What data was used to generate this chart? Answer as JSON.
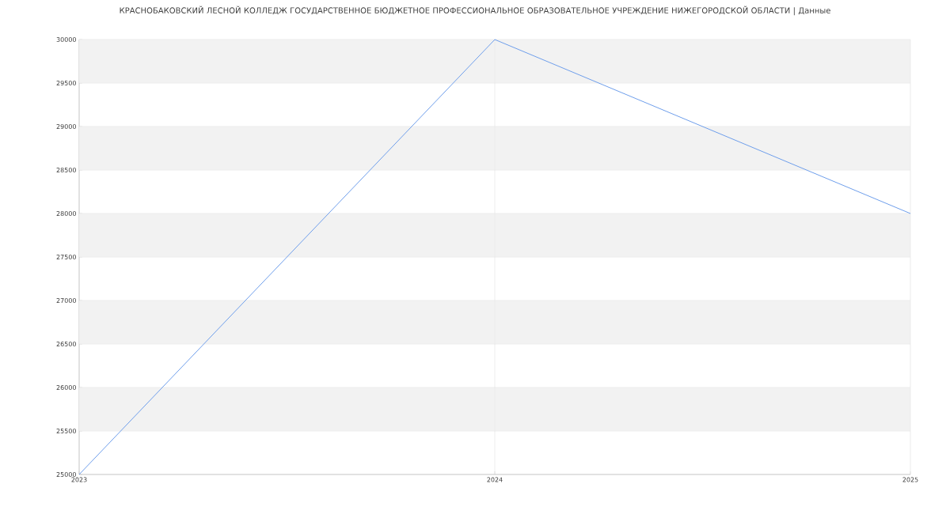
{
  "chart_data": {
    "type": "line",
    "title": "КРАСНОБАКОВСКИЙ ЛЕСНОЙ КОЛЛЕДЖ ГОСУДАРСТВЕННОЕ БЮДЖЕТНОЕ ПРОФЕССИОНАЛЬНОЕ ОБРАЗОВАТЕЛЬНОЕ УЧРЕЖДЕНИЕ НИЖЕГОРОДСКОЙ ОБЛАСТИ | Данные",
    "x": [
      2023,
      2024,
      2025
    ],
    "series": [
      {
        "color": "#6d9eeb",
        "values": [
          25000,
          30000,
          28000
        ]
      }
    ],
    "xlim": [
      2023,
      2025
    ],
    "xticks": [
      2023,
      2024,
      2025
    ],
    "ylim": [
      25000,
      30000
    ],
    "yticks": [
      25000,
      25500,
      26000,
      26500,
      27000,
      27500,
      28000,
      28500,
      29000,
      29500,
      30000
    ],
    "grid": true,
    "marker": "none",
    "line_style": "solid",
    "bands": [
      {
        "axis": "y",
        "from": 25500,
        "to": 26000,
        "color": "#f2f2f2"
      },
      {
        "axis": "y",
        "from": 26500,
        "to": 27000,
        "color": "#f2f2f2"
      },
      {
        "axis": "y",
        "from": 27500,
        "to": 28000,
        "color": "#f2f2f2"
      },
      {
        "axis": "y",
        "from": 28500,
        "to": 29000,
        "color": "#f2f2f2"
      },
      {
        "axis": "y",
        "from": 29500,
        "to": 30000,
        "color": "#f2f2f2"
      }
    ]
  }
}
